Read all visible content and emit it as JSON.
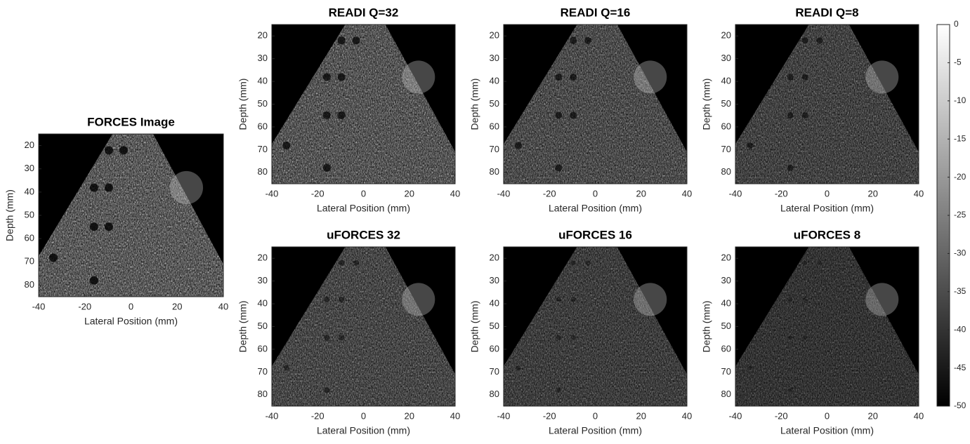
{
  "chart_data": [
    {
      "type": "image",
      "title": "FORCES Image",
      "xlabel": "Lateral Position (mm)",
      "ylabel": "Depth (mm)",
      "xlim": [
        -40,
        40
      ],
      "ylim": [
        15,
        85
      ],
      "y_reversed": true,
      "xticks": [
        -40,
        -20,
        0,
        20,
        40
      ],
      "yticks": [
        20,
        30,
        40,
        50,
        60,
        70,
        80
      ],
      "colormap": "gray"
    },
    {
      "type": "image",
      "title": "READI Q=32",
      "xlabel": "Lateral Position (mm)",
      "ylabel": "Depth (mm)",
      "xlim": [
        -40,
        40
      ],
      "ylim": [
        15,
        85
      ],
      "y_reversed": true,
      "xticks": [
        -40,
        -20,
        0,
        20,
        40
      ],
      "yticks": [
        20,
        30,
        40,
        50,
        60,
        70,
        80
      ],
      "colormap": "gray"
    },
    {
      "type": "image",
      "title": "READI Q=16",
      "xlabel": "Lateral Position (mm)",
      "ylabel": "Depth (mm)",
      "xlim": [
        -40,
        40
      ],
      "ylim": [
        15,
        85
      ],
      "y_reversed": true,
      "xticks": [
        -40,
        -20,
        0,
        20,
        40
      ],
      "yticks": [
        20,
        30,
        40,
        50,
        60,
        70,
        80
      ],
      "colormap": "gray"
    },
    {
      "type": "image",
      "title": "READI Q=8",
      "xlabel": "Lateral Position (mm)",
      "ylabel": "Depth (mm)",
      "xlim": [
        -40,
        40
      ],
      "ylim": [
        15,
        85
      ],
      "y_reversed": true,
      "xticks": [
        -40,
        -20,
        0,
        20,
        40
      ],
      "yticks": [
        20,
        30,
        40,
        50,
        60,
        70,
        80
      ],
      "colormap": "gray"
    },
    {
      "type": "image",
      "title": "uFORCES 32",
      "xlabel": "Lateral Position (mm)",
      "ylabel": "Depth (mm)",
      "xlim": [
        -40,
        40
      ],
      "ylim": [
        15,
        85
      ],
      "y_reversed": true,
      "xticks": [
        -40,
        -20,
        0,
        20,
        40
      ],
      "yticks": [
        20,
        30,
        40,
        50,
        60,
        70,
        80
      ],
      "colormap": "gray"
    },
    {
      "type": "image",
      "title": "uFORCES 16",
      "xlabel": "Lateral Position (mm)",
      "ylabel": "Depth (mm)",
      "xlim": [
        -40,
        40
      ],
      "ylim": [
        15,
        85
      ],
      "y_reversed": true,
      "xticks": [
        -40,
        -20,
        0,
        20,
        40
      ],
      "yticks": [
        20,
        30,
        40,
        50,
        60,
        70,
        80
      ],
      "colormap": "gray"
    },
    {
      "type": "image",
      "title": "uFORCES 8",
      "xlabel": "Lateral Position (mm)",
      "ylabel": "Depth (mm)",
      "xlim": [
        -40,
        40
      ],
      "ylim": [
        15,
        85
      ],
      "y_reversed": true,
      "xticks": [
        -40,
        -20,
        0,
        20,
        40
      ],
      "yticks": [
        20,
        30,
        40,
        50,
        60,
        70,
        80
      ],
      "colormap": "gray"
    },
    {
      "type": "colorbar",
      "ylim": [
        -50,
        0
      ],
      "yticks": [
        0,
        -5,
        -10,
        -15,
        -20,
        -25,
        -30,
        -35,
        -40,
        -45,
        -50
      ],
      "colormap": "gray"
    }
  ]
}
